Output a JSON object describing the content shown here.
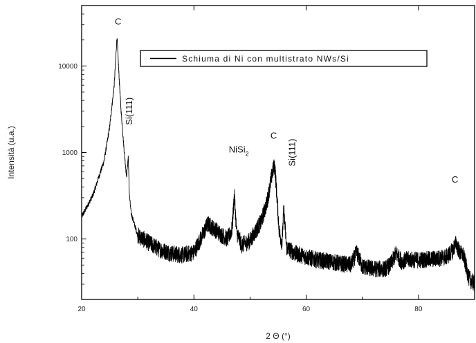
{
  "chart_data": {
    "type": "line",
    "title": "",
    "xlabel": "2 Θ (°)",
    "ylabel": "Intensità (u.a.)",
    "xlim": [
      20,
      90
    ],
    "ylim": [
      20,
      50000
    ],
    "yscale": "log",
    "xticks": [
      20,
      40,
      60,
      80
    ],
    "yticks": [
      100,
      1000,
      10000
    ],
    "xtick_labels": [
      "20",
      "40",
      "60",
      "80"
    ],
    "ytick_labels": [
      "100",
      "1000",
      "10000"
    ],
    "grid": false,
    "legend": {
      "position": "top-right",
      "entries": [
        "Schiuma di Ni con multistrato NWs/Si"
      ]
    },
    "series": [
      {
        "name": "Schiuma di Ni con multistrato NWs/Si",
        "color": "#000000",
        "x": [
          20,
          22,
          24,
          25,
          25.8,
          26.3,
          26.6,
          27,
          27.5,
          28,
          28.3,
          28.5,
          28.8,
          29.5,
          30,
          32,
          34,
          36,
          38,
          40,
          41.5,
          42.5,
          43,
          44,
          45,
          46,
          46.8,
          47.2,
          47.6,
          48.5,
          50,
          52,
          53,
          54,
          54.4,
          54.8,
          55.2,
          55.7,
          56.0,
          56.5,
          58,
          60,
          62,
          64,
          66,
          68,
          69,
          70,
          72,
          74,
          75,
          76,
          77,
          78,
          80,
          82,
          84,
          85,
          86,
          86.7,
          87.3,
          88,
          89,
          90
        ],
        "values": [
          180,
          320,
          800,
          2000,
          6000,
          22000,
          9000,
          3200,
          1200,
          520,
          900,
          330,
          200,
          140,
          110,
          90,
          75,
          68,
          65,
          70,
          110,
          150,
          140,
          125,
          110,
          100,
          130,
          330,
          120,
          85,
          95,
          160,
          260,
          600,
          720,
          300,
          120,
          90,
          220,
          80,
          68,
          62,
          57,
          55,
          52,
          50,
          70,
          48,
          45,
          45,
          50,
          68,
          55,
          58,
          57,
          58,
          60,
          62,
          72,
          90,
          70,
          65,
          35,
          30
        ]
      }
    ],
    "annotations": [
      {
        "text": "C",
        "x": 26.5,
        "y": 30000
      },
      {
        "text": "Si(111)",
        "x": 29.0,
        "y": 3000,
        "rotated": true
      },
      {
        "text": "NiSi",
        "sub": "2",
        "x": 48.0,
        "y": 1000
      },
      {
        "text": "C",
        "x": 54.2,
        "y": 1450
      },
      {
        "text": "Si(111)",
        "x": 58.0,
        "y": 1000,
        "rotated": true
      },
      {
        "text": "C",
        "x": 86.5,
        "y": 450
      }
    ]
  }
}
